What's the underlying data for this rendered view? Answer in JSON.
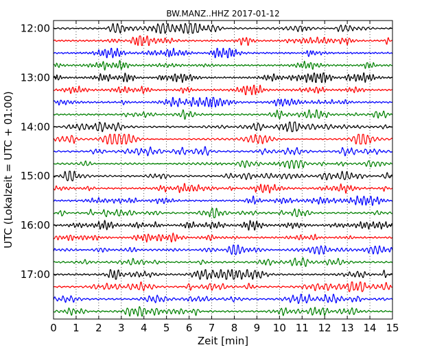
{
  "chart_data": {
    "type": "line",
    "title": "BW.MANZ..HHZ 2017-01-12",
    "xlabel": "Zeit  [min]",
    "ylabel": "UTC (Lokalzeit = UTC + 01:00)",
    "xlim": [
      0,
      15
    ],
    "x_ticks": [
      "0",
      "1",
      "2",
      "3",
      "4",
      "5",
      "6",
      "7",
      "8",
      "9",
      "10",
      "11",
      "12",
      "13",
      "14",
      "15"
    ],
    "y_tick_labels": [
      "12:00",
      "13:00",
      "14:00",
      "15:00",
      "16:00",
      "17:00"
    ],
    "traces_per_hour": 4,
    "trace_count": 24,
    "trace_colors": [
      "#000000",
      "#ff0000",
      "#0000ff",
      "#008000"
    ],
    "grid": "vertical dotted",
    "legend": "none"
  }
}
